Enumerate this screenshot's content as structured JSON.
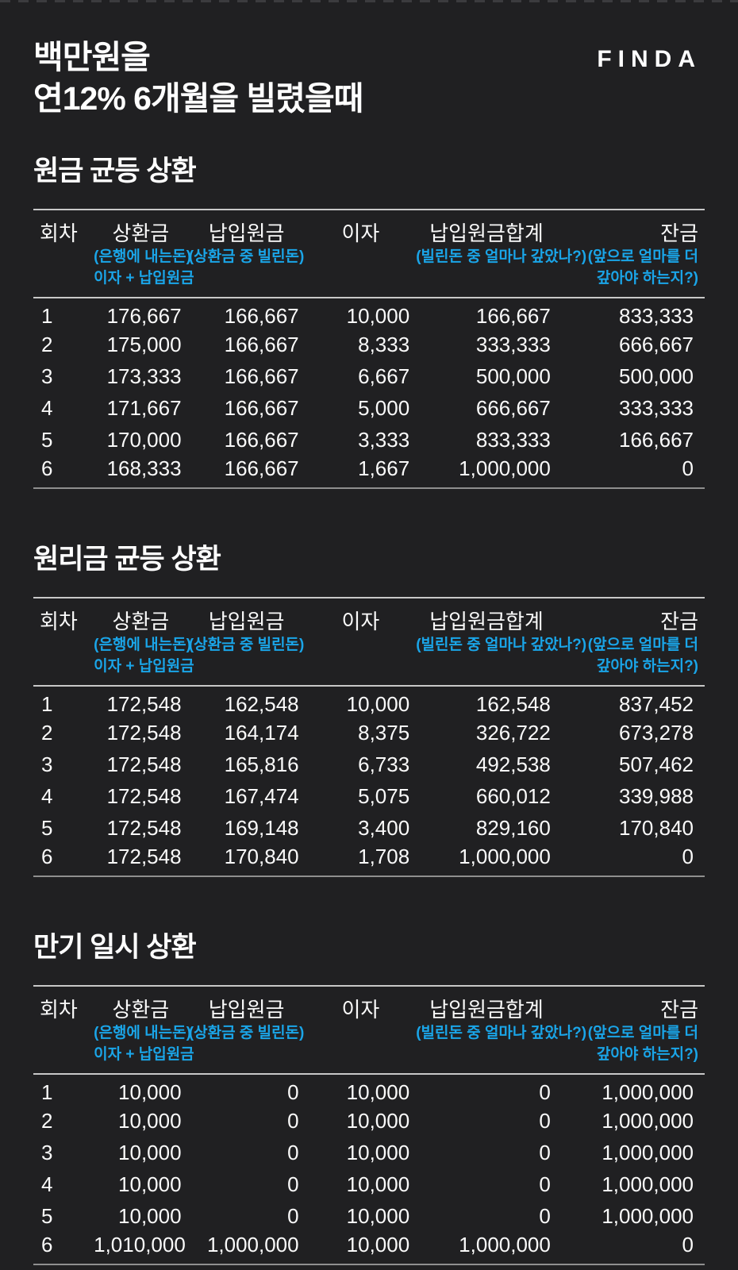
{
  "header": {
    "title_line1": "백만원을",
    "title_line2": "연12% 6개월을 빌렸을때",
    "brand": "FINDA"
  },
  "colors": {
    "background": "#202022",
    "text": "#fafafa",
    "accent_blue": "#1aa5e8",
    "table_line_light": "#c8c8c8",
    "table_line_dark": "#8f8f8f"
  },
  "columns": [
    {
      "key": "round",
      "label": "회차",
      "sub": []
    },
    {
      "key": "repayment",
      "label": "상환금",
      "sub": [
        "(은행에 내는돈)",
        "이자 + 납입원금"
      ]
    },
    {
      "key": "principal_paid",
      "label": "납입원금",
      "sub": [
        "(상환금 중 빌린돈)"
      ]
    },
    {
      "key": "interest",
      "label": "이자",
      "sub": []
    },
    {
      "key": "principal_total",
      "label": "납입원금합계",
      "sub": [
        "(빌린돈 중 얼마나 갚았나?)"
      ]
    },
    {
      "key": "balance",
      "label": "잔금",
      "sub": [
        "(앞으로 얼마를 더",
        "갚아야 하는지?)"
      ]
    }
  ],
  "tables": [
    {
      "title": "원금 균등 상환",
      "rows": [
        [
          "1",
          "176,667",
          "166,667",
          "10,000",
          "166,667",
          "833,333"
        ],
        [
          "2",
          "175,000",
          "166,667",
          "8,333",
          "333,333",
          "666,667"
        ],
        [
          "3",
          "173,333",
          "166,667",
          "6,667",
          "500,000",
          "500,000"
        ],
        [
          "4",
          "171,667",
          "166,667",
          "5,000",
          "666,667",
          "333,333"
        ],
        [
          "5",
          "170,000",
          "166,667",
          "3,333",
          "833,333",
          "166,667"
        ],
        [
          "6",
          "168,333",
          "166,667",
          "1,667",
          "1,000,000",
          "0"
        ]
      ]
    },
    {
      "title": "원리금 균등 상환",
      "rows": [
        [
          "1",
          "172,548",
          "162,548",
          "10,000",
          "162,548",
          "837,452"
        ],
        [
          "2",
          "172,548",
          "164,174",
          "8,375",
          "326,722",
          "673,278"
        ],
        [
          "3",
          "172,548",
          "165,816",
          "6,733",
          "492,538",
          "507,462"
        ],
        [
          "4",
          "172,548",
          "167,474",
          "5,075",
          "660,012",
          "339,988"
        ],
        [
          "5",
          "172,548",
          "169,148",
          "3,400",
          "829,160",
          "170,840"
        ],
        [
          "6",
          "172,548",
          "170,840",
          "1,708",
          "1,000,000",
          "0"
        ]
      ]
    },
    {
      "title": "만기 일시 상환",
      "rows": [
        [
          "1",
          "10,000",
          "0",
          "10,000",
          "0",
          "1,000,000"
        ],
        [
          "2",
          "10,000",
          "0",
          "10,000",
          "0",
          "1,000,000"
        ],
        [
          "3",
          "10,000",
          "0",
          "10,000",
          "0",
          "1,000,000"
        ],
        [
          "4",
          "10,000",
          "0",
          "10,000",
          "0",
          "1,000,000"
        ],
        [
          "5",
          "10,000",
          "0",
          "10,000",
          "0",
          "1,000,000"
        ],
        [
          "6",
          "1,010,000",
          "1,000,000",
          "10,000",
          "1,000,000",
          "0"
        ]
      ]
    }
  ]
}
